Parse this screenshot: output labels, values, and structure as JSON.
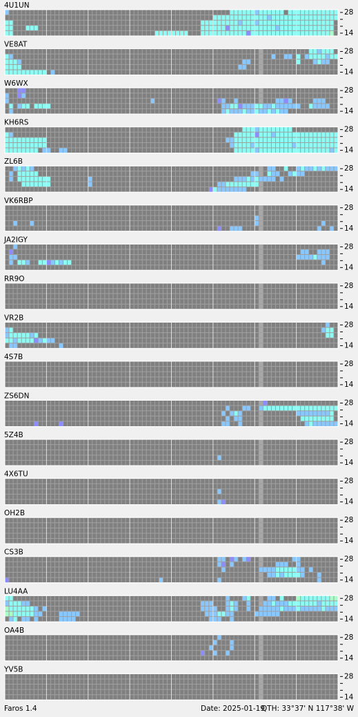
{
  "app": "Faros 1.4",
  "date": "Date: 2025-01-19",
  "qth": "QTH: 33°37' N  117°38' W",
  "scale_labels": [
    "28",
    "14"
  ],
  "columns": 80,
  "dim_column": 61,
  "level_colors": {
    "c": "#8cfcf4",
    "b": "#88c8ff",
    "p": "#8c8cff",
    "g": "#a8ffc8"
  },
  "stations": [
    {
      "name": "4U1UN",
      "bands": [
        [
          [
            0,
            "b"
          ],
          [
            54,
            "ccccccbcccccc"
          ],
          [
            68,
            "cccccccccccc"
          ]
        ],
        [
          [
            50,
            "cccccccccccccbcccccccccccccccc"
          ]
        ],
        [
          [
            0,
            "cc"
          ],
          [
            47,
            "cccccccccbcccbcccccccccccccccccc"
          ]
        ],
        [
          [
            0,
            "cc"
          ],
          [
            5,
            "ccc"
          ],
          [
            47,
            "ccccccpcccccccccccbccccccccccccc"
          ]
        ],
        [
          [
            0,
            "cc"
          ],
          [
            36,
            "cccccccc"
          ],
          [
            47,
            "cccccccccccpcccccccccccccccccccg"
          ]
        ]
      ]
    },
    {
      "name": "VE8AT",
      "bands": [
        [
          [
            73,
            "ccbccc"
          ]
        ],
        [
          [
            0,
            "cb"
          ],
          [
            64,
            "b"
          ],
          [
            67,
            "bb"
          ],
          [
            70,
            "c"
          ],
          [
            72,
            "bccccbcc"
          ]
        ],
        [
          [
            0,
            "cccb"
          ],
          [
            57,
            "bb"
          ],
          [
            70,
            "c"
          ],
          [
            74,
            "bcbb"
          ]
        ],
        [
          [
            0,
            "cccc"
          ],
          [
            56,
            "bb"
          ]
        ],
        [
          [
            0,
            "cccccccccc"
          ],
          [
            11,
            "b"
          ]
        ]
      ]
    },
    {
      "name": "W6WX",
      "bands": [
        [
          [
            3,
            "pp"
          ]
        ],
        [
          [
            0,
            "b"
          ],
          [
            3,
            "pb"
          ]
        ],
        [
          [
            0,
            "b"
          ],
          [
            35,
            "b"
          ],
          [
            51,
            "pb"
          ],
          [
            55,
            "b"
          ],
          [
            65,
            "bbpb"
          ],
          [
            74,
            "bbb"
          ]
        ],
        [
          [
            1,
            "c"
          ],
          [
            3,
            "bcc"
          ],
          [
            7,
            "cccc"
          ],
          [
            52,
            "bbccpbbbccbbcbbbbbb"
          ],
          [
            73,
            "cbbbb"
          ]
        ],
        [
          [
            1,
            "b"
          ],
          [
            52,
            "bcbbbcbbcbbcbcbb"
          ]
        ]
      ]
    },
    {
      "name": "KH6RS",
      "bands": [
        [
          [
            57,
            "cccbcccccccc"
          ]
        ],
        [
          [
            0,
            "cb"
          ],
          [
            55,
            "cccccpcccbccccccccccccccc"
          ]
        ],
        [
          [
            0,
            "cccccccccc"
          ],
          [
            53,
            "bbccccccccccccccccccccccccc"
          ]
        ],
        [
          [
            0,
            "cccccccccc"
          ],
          [
            54,
            "bccccbcccccccccbcccccccccc"
          ]
        ],
        [
          [
            0,
            "cccccccc"
          ],
          [
            9,
            "bb"
          ],
          [
            13,
            "bb"
          ],
          [
            55,
            "cccccbcccccccccccccccccbc"
          ]
        ]
      ]
    },
    {
      "name": "ZL6B",
      "bands": [
        [
          [
            2,
            "bcbcb"
          ],
          [
            63,
            "bb"
          ],
          [
            67,
            "c"
          ],
          [
            70,
            "bcbbcbcbbb"
          ]
        ],
        [
          [
            1,
            "b"
          ],
          [
            3,
            "ccccc"
          ],
          [
            59,
            "bb"
          ],
          [
            63,
            "cbb"
          ],
          [
            68,
            "bcbb"
          ]
        ],
        [
          [
            1,
            "b"
          ],
          [
            3,
            "cccccccc"
          ],
          [
            20,
            "b"
          ],
          [
            55,
            "bbbcbcbbbb"
          ],
          [
            66,
            "b"
          ]
        ],
        [
          [
            4,
            "ccccccc"
          ],
          [
            20,
            "b"
          ],
          [
            51,
            "bbcccccccc"
          ]
        ],
        [
          [
            49,
            "pcbbbbbbb"
          ]
        ]
      ]
    },
    {
      "name": "VK6RBP",
      "bands": [
        [],
        [],
        [
          [
            60,
            "b"
          ]
        ],
        [
          [
            2,
            "b"
          ],
          [
            6,
            "b"
          ],
          [
            60,
            "b"
          ],
          [
            76,
            "b"
          ]
        ],
        [
          [
            51,
            "p"
          ],
          [
            54,
            "bbb"
          ],
          [
            75,
            "b"
          ],
          [
            78,
            "b"
          ]
        ]
      ]
    },
    {
      "name": "JA2IGY",
      "bands": [
        [
          [
            2,
            "b"
          ]
        ],
        [
          [
            1,
            "p"
          ],
          [
            71,
            "bb"
          ],
          [
            75,
            "bbb"
          ]
        ],
        [
          [
            1,
            "bb"
          ],
          [
            70,
            "bbbbcbbb"
          ]
        ],
        [
          [
            1,
            "b"
          ],
          [
            3,
            "ccb"
          ],
          [
            8,
            "ccpbcbcc"
          ],
          [
            76,
            "b"
          ]
        ],
        []
      ]
    },
    {
      "name": "RR9O",
      "bands": [
        [],
        [],
        [],
        [],
        []
      ]
    },
    {
      "name": "VR2B",
      "bands": [
        [
          [
            77,
            "b"
          ]
        ],
        [
          [
            0,
            "bc"
          ],
          [
            76,
            "bcc"
          ]
        ],
        [
          [
            0,
            "bcccccbc"
          ],
          [
            77,
            "cc"
          ]
        ],
        [
          [
            0,
            "ccbccccpbcbb"
          ]
        ],
        [
          [
            1,
            "bb"
          ],
          [
            13,
            "b"
          ]
        ]
      ]
    },
    {
      "name": "4S7B",
      "bands": [
        [],
        [],
        [],
        [],
        []
      ]
    },
    {
      "name": "ZS6DN",
      "bands": [
        [
          [
            62,
            "p"
          ]
        ],
        [
          [
            53,
            "b"
          ],
          [
            57,
            "bb"
          ],
          [
            61,
            "bcccccccccccccccccc"
          ]
        ],
        [
          [
            52,
            "b"
          ],
          [
            54,
            "bcb"
          ],
          [
            70,
            "bbbbbbbbc"
          ]
        ],
        [
          [
            53,
            "b"
          ],
          [
            55,
            "bb"
          ],
          [
            71,
            "cccccccc"
          ]
        ],
        [
          [
            7,
            "p"
          ],
          [
            13,
            "p"
          ],
          [
            52,
            "bb"
          ],
          [
            56,
            "b"
          ],
          [
            72,
            "bcbbbbbb"
          ]
        ]
      ]
    },
    {
      "name": "5Z4B",
      "bands": [
        [],
        [],
        [],
        [
          [
            51,
            "b"
          ]
        ],
        []
      ]
    },
    {
      "name": "4X6TU",
      "bands": [
        [],
        [],
        [
          [
            51,
            "b"
          ]
        ],
        [],
        [
          [
            51,
            "bp"
          ]
        ]
      ]
    },
    {
      "name": "OH2B",
      "bands": [
        [],
        [],
        [],
        [],
        []
      ]
    },
    {
      "name": "CS3B",
      "bands": [
        [
          [
            51,
            "bb"
          ],
          [
            54,
            "pb"
          ],
          [
            57,
            "bp"
          ],
          [
            69,
            "bb"
          ]
        ],
        [
          [
            51,
            "bp"
          ],
          [
            54,
            "b"
          ],
          [
            65,
            "bbb"
          ],
          [
            70,
            "b"
          ]
        ],
        [
          [
            52,
            "b"
          ],
          [
            61,
            "bbbbcccccbb"
          ],
          [
            73,
            "b"
          ]
        ],
        [
          [
            63,
            "bbcbccccb"
          ],
          [
            75,
            "b"
          ]
        ],
        [
          [
            0,
            "p"
          ],
          [
            37,
            "b"
          ],
          [
            51,
            "b"
          ],
          [
            75,
            "b"
          ]
        ]
      ]
    },
    {
      "name": "LU4AA",
      "bands": [
        [
          [
            0,
            "cc"
          ],
          [
            53,
            "b"
          ],
          [
            57,
            "bc"
          ],
          [
            63,
            "bb"
          ],
          [
            66,
            "c"
          ],
          [
            70,
            "gcccccccgg"
          ]
        ],
        [
          [
            0,
            "bcccbb"
          ],
          [
            47,
            "bbb"
          ],
          [
            53,
            "bcb"
          ],
          [
            58,
            "b"
          ],
          [
            62,
            "bbcbbbcccccccbcccc"
          ]
        ],
        [
          [
            0,
            "gccccccb"
          ],
          [
            9,
            "b"
          ],
          [
            47,
            "bbbb"
          ],
          [
            53,
            "bcb"
          ],
          [
            58,
            "b"
          ],
          [
            61,
            "bbbbbcbbbcbbbbbcbbb"
          ]
        ],
        [
          [
            0,
            "ggcccccbb"
          ],
          [
            13,
            "bbbbb"
          ],
          [
            48,
            "bbbccbb"
          ],
          [
            60,
            "bbbbbb"
          ]
        ],
        [
          [
            1,
            "bc"
          ],
          [
            4,
            "bb"
          ],
          [
            7,
            "b"
          ],
          [
            13,
            "bbbb"
          ],
          [
            49,
            "bbb"
          ],
          [
            54,
            "b"
          ]
        ]
      ]
    },
    {
      "name": "OA4B",
      "bands": [
        [
          [
            51,
            "b"
          ]
        ],
        [
          [
            50,
            "b"
          ],
          [
            54,
            "b"
          ]
        ],
        [
          [
            49,
            "b"
          ],
          [
            54,
            "b"
          ]
        ],
        [
          [
            47,
            "p"
          ],
          [
            50,
            "b"
          ],
          [
            53,
            "b"
          ]
        ],
        []
      ]
    },
    {
      "name": "YV5B",
      "bands": [
        [],
        [],
        [],
        [],
        []
      ]
    }
  ]
}
